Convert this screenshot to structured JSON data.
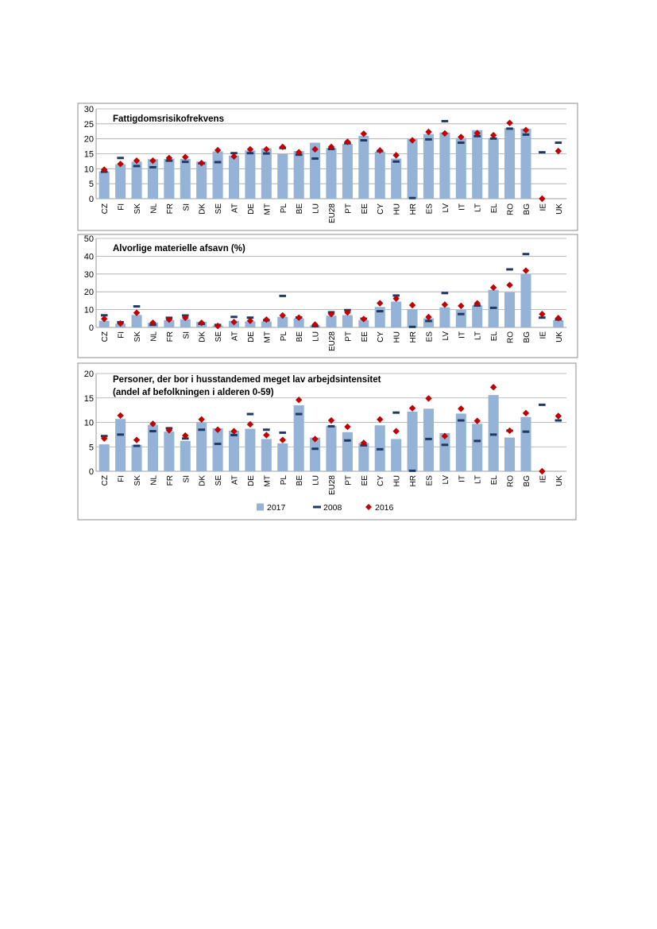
{
  "colors": {
    "bar_2017": "#95b3d7",
    "mark_2008": "#1f3864",
    "mark_2016": "#c00000",
    "grid": "#a6a6a6",
    "frame": "#8c8c8c"
  },
  "legend": {
    "s2017": "2017",
    "s2008": "2008",
    "s2016": "2016"
  },
  "chart_data": [
    {
      "type": "bar",
      "title": "Fattigdomsrisikofrekvens",
      "ylim": [
        0,
        30
      ],
      "yticks": [
        "0",
        "5",
        "10",
        "15",
        "20",
        "25",
        "30"
      ],
      "categories": [
        "CZ",
        "FI",
        "SK",
        "NL",
        "FR",
        "SI",
        "DK",
        "SE",
        "AT",
        "DE",
        "MT",
        "PL",
        "BE",
        "LU",
        "EU28",
        "PT",
        "EE",
        "CY",
        "HU",
        "HR",
        "ES",
        "LV",
        "IT",
        "LT",
        "EL",
        "RO",
        "BG",
        "IE",
        "UK"
      ],
      "series": [
        {
          "name": "2017",
          "kind": "bar",
          "values": [
            9.1,
            11.5,
            12.4,
            13.2,
            13.3,
            13.3,
            12.4,
            15.8,
            14.4,
            16.1,
            16.8,
            15.0,
            15.9,
            18.7,
            16.9,
            18.3,
            21.0,
            15.7,
            13.4,
            20.0,
            21.6,
            22.1,
            20.3,
            22.9,
            20.2,
            23.6,
            23.4,
            null,
            null
          ]
        },
        {
          "name": "2008",
          "kind": "dash",
          "values": [
            9.0,
            13.6,
            10.9,
            10.5,
            12.7,
            12.3,
            11.8,
            12.2,
            15.2,
            15.2,
            15.1,
            16.9,
            14.7,
            13.4,
            16.6,
            18.5,
            19.5,
            15.9,
            12.4,
            0.2,
            19.8,
            25.9,
            18.7,
            20.9,
            20.1,
            23.4,
            21.4,
            15.5,
            18.7
          ]
        },
        {
          "name": "2016",
          "kind": "diamond",
          "values": [
            9.7,
            11.6,
            12.7,
            12.7,
            13.6,
            13.9,
            11.9,
            16.2,
            14.1,
            16.5,
            16.5,
            17.3,
            15.5,
            16.5,
            17.3,
            19.0,
            21.7,
            16.1,
            14.5,
            19.5,
            22.3,
            21.8,
            20.6,
            21.9,
            21.2,
            25.3,
            22.9,
            0.0,
            15.9
          ]
        }
      ]
    },
    {
      "type": "bar",
      "title": "Alvorlige materielle afsavn (%)",
      "ylim": [
        0,
        50
      ],
      "yticks": [
        "0",
        "10",
        "20",
        "30",
        "40",
        "50"
      ],
      "categories": [
        "CZ",
        "FI",
        "SK",
        "NL",
        "FR",
        "SI",
        "DK",
        "SE",
        "AT",
        "DE",
        "MT",
        "PL",
        "BE",
        "LU",
        "EU28",
        "PT",
        "EE",
        "CY",
        "HU",
        "HR",
        "ES",
        "LV",
        "IT",
        "LT",
        "EL",
        "RO",
        "BG",
        "IE",
        "UK"
      ],
      "series": [
        {
          "name": "2017",
          "kind": "bar",
          "values": [
            3.7,
            2.1,
            7.0,
            2.6,
            4.1,
            4.6,
            3.1,
            1.1,
            3.7,
            3.4,
            3.3,
            5.9,
            5.1,
            1.2,
            6.6,
            6.9,
            4.1,
            11.5,
            14.5,
            10.3,
            5.1,
            11.3,
            10.1,
            12.4,
            21.1,
            19.7,
            30.0,
            null,
            4.1
          ]
        },
        {
          "name": "2008",
          "kind": "dash",
          "values": [
            6.8,
            2.9,
            11.8,
            1.5,
            5.4,
            6.7,
            2.0,
            1.4,
            5.9,
            5.5,
            4.0,
            17.7,
            5.6,
            0.7,
            8.5,
            9.7,
            4.9,
            9.1,
            17.9,
            0.3,
            3.6,
            19.3,
            7.5,
            12.3,
            11.0,
            32.6,
            41.2,
            5.5,
            4.5
          ]
        },
        {
          "name": "2016",
          "kind": "diamond",
          "values": [
            4.8,
            2.2,
            8.2,
            2.6,
            4.4,
            5.4,
            2.6,
            0.8,
            3.0,
            3.7,
            4.4,
            6.7,
            5.5,
            1.6,
            7.5,
            8.4,
            4.7,
            13.6,
            16.2,
            12.5,
            5.8,
            12.8,
            12.1,
            13.5,
            22.4,
            23.8,
            31.9,
            7.5,
            5.2
          ]
        }
      ]
    },
    {
      "type": "bar",
      "title": "Personer, der bor i husstandemed meget lav arbejdsintensitet",
      "subtitle": "(andel af befolkningen i alderen 0-59)",
      "ylim": [
        0,
        20
      ],
      "yticks": [
        "0",
        "5",
        "10",
        "15",
        "20"
      ],
      "categories": [
        "CZ",
        "FI",
        "SK",
        "NL",
        "FR",
        "SI",
        "DK",
        "SE",
        "AT",
        "DE",
        "MT",
        "PL",
        "BE",
        "LU",
        "EU28",
        "PT",
        "EE",
        "CY",
        "HU",
        "HR",
        "ES",
        "LV",
        "IT",
        "LT",
        "EL",
        "RO",
        "BG",
        "IE",
        "UK"
      ],
      "series": [
        {
          "name": "2017",
          "kind": "bar",
          "values": [
            5.5,
            10.7,
            5.4,
            9.5,
            8.1,
            6.2,
            10.0,
            8.8,
            8.3,
            8.7,
            6.6,
            5.7,
            13.5,
            6.9,
            9.3,
            8.0,
            5.8,
            9.4,
            6.6,
            12.2,
            12.8,
            7.8,
            11.8,
            9.7,
            15.6,
            6.9,
            11.1,
            null,
            null
          ]
        },
        {
          "name": "2008",
          "kind": "dash",
          "values": [
            7.2,
            7.5,
            5.2,
            8.2,
            8.8,
            6.7,
            8.5,
            5.6,
            7.4,
            11.7,
            8.5,
            7.9,
            11.7,
            4.6,
            9.2,
            6.3,
            5.3,
            4.5,
            12.0,
            0.1,
            6.6,
            5.4,
            10.4,
            6.2,
            7.5,
            8.3,
            8.1,
            13.6,
            10.4
          ]
        },
        {
          "name": "2016",
          "kind": "diamond",
          "values": [
            6.7,
            11.4,
            6.4,
            9.7,
            8.4,
            7.3,
            10.6,
            8.5,
            8.2,
            9.6,
            7.4,
            6.4,
            14.6,
            6.6,
            10.4,
            9.1,
            5.8,
            10.6,
            8.2,
            12.9,
            14.9,
            7.2,
            12.8,
            10.3,
            17.2,
            8.3,
            11.9,
            0.0,
            11.3
          ]
        }
      ]
    }
  ]
}
